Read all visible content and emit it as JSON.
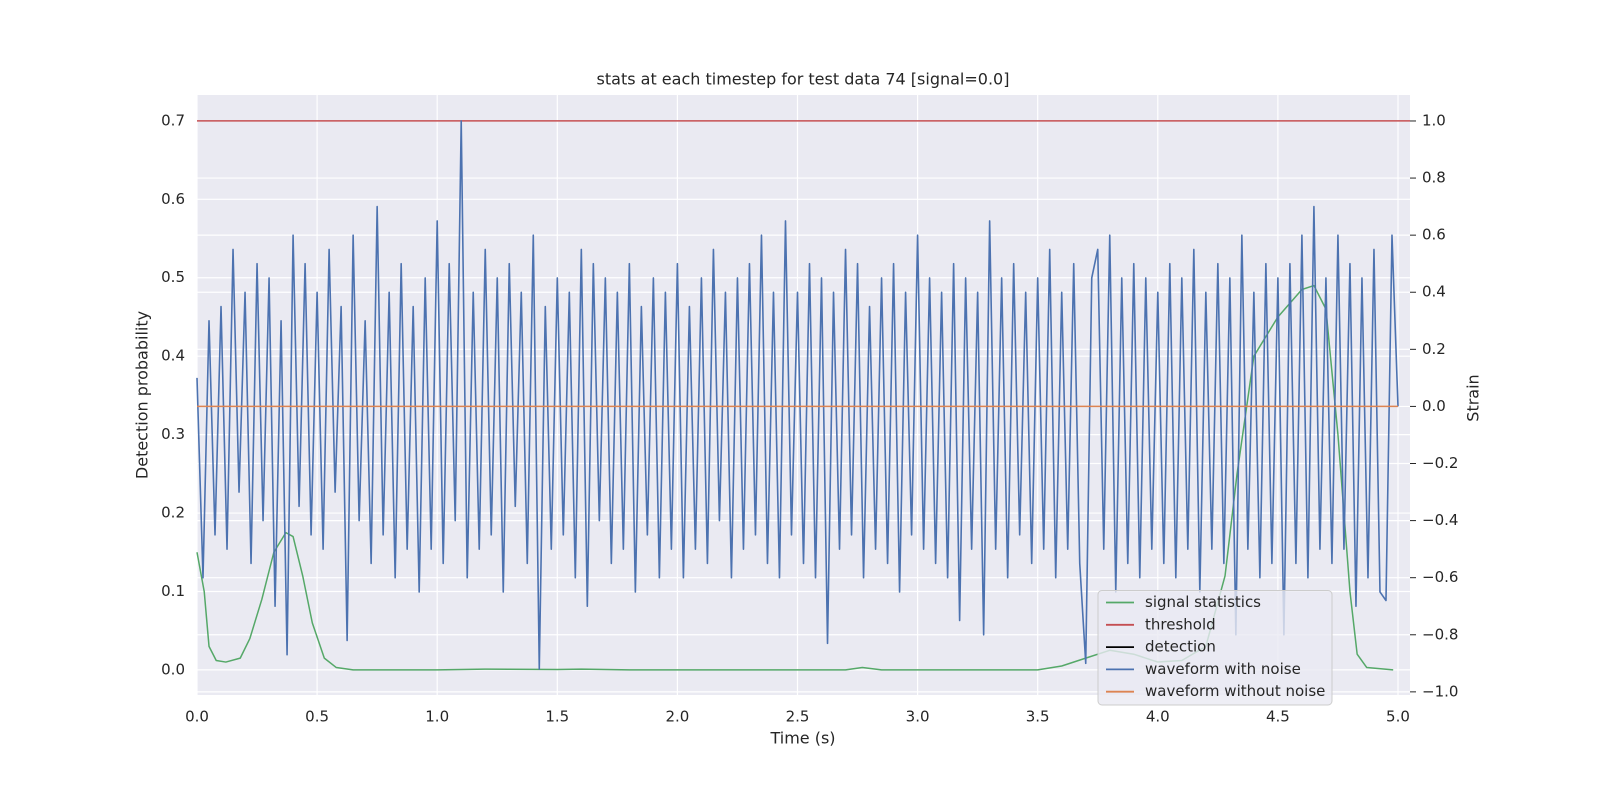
{
  "chart_data": {
    "type": "line",
    "title": "stats at each timestep for test data 74 [signal=0.0]",
    "xlabel": "Time (s)",
    "ylabel": "Detection probability",
    "y2label": "Strain",
    "xlim": [
      0,
      5.05
    ],
    "xticks": [
      {
        "value": 0,
        "label": "0.0"
      },
      0.5,
      {
        "value": 1,
        "label": "1.0"
      },
      1.5,
      {
        "value": 2,
        "label": "2.0"
      },
      2.5,
      {
        "value": 3,
        "label": "3.0"
      },
      3.5,
      {
        "value": 4,
        "label": "4.0"
      },
      4.5,
      {
        "value": 5,
        "label": "5.0"
      }
    ],
    "ylim": [
      -0.032,
      0.733
    ],
    "yticks": [
      {
        "value": 0,
        "label": "0.0"
      },
      0.1,
      0.2,
      0.3,
      0.4,
      0.5,
      0.6,
      0.7
    ],
    "y2lim": [
      -1.011,
      1.091
    ],
    "y2ticks": [
      {
        "value": -1,
        "label": "−1.0"
      },
      {
        "value": -0.8,
        "label": "−0.8"
      },
      {
        "value": -0.6,
        "label": "−0.6"
      },
      {
        "value": -0.4,
        "label": "−0.4"
      },
      {
        "value": -0.2,
        "label": "−0.2"
      },
      {
        "value": 0,
        "label": "0.0"
      },
      0.2,
      0.4,
      0.6,
      0.8,
      {
        "value": 1,
        "label": "1.0"
      }
    ],
    "grid": true,
    "legend": "lower right",
    "series": [
      {
        "name": "signal statistics",
        "color": "#55a868",
        "axis": "y",
        "x": [
          0,
          0.03,
          0.05,
          0.08,
          0.12,
          0.18,
          0.22,
          0.27,
          0.32,
          0.37,
          0.4,
          0.44,
          0.48,
          0.53,
          0.58,
          0.65,
          1.0,
          1.2,
          1.5,
          1.6,
          1.8,
          2.7,
          2.77,
          2.85,
          3.5,
          3.6,
          3.7,
          3.8,
          3.9,
          4.0,
          4.1,
          4.2,
          4.28,
          4.33,
          4.4,
          4.5,
          4.6,
          4.65,
          4.7,
          4.75,
          4.8,
          4.83,
          4.87,
          4.98
        ],
        "values": [
          0.15,
          0.1,
          0.03,
          0.012,
          0.01,
          0.015,
          0.04,
          0.09,
          0.15,
          0.175,
          0.17,
          0.12,
          0.06,
          0.015,
          0.003,
          0,
          0,
          0.001,
          0.0005,
          0.001,
          0,
          0,
          0.003,
          0,
          0,
          0.005,
          0.015,
          0.025,
          0.02,
          0.01,
          0.012,
          0.03,
          0.12,
          0.25,
          0.4,
          0.45,
          0.485,
          0.49,
          0.46,
          0.3,
          0.1,
          0.02,
          0.003,
          0
        ]
      },
      {
        "name": "threshold",
        "color": "#c44e52",
        "axis": "y",
        "x": [
          0,
          5.05
        ],
        "values": [
          0.7,
          0.7
        ]
      },
      {
        "name": "detection",
        "color": "#000000",
        "axis": "y"
      },
      {
        "name": "waveform with noise",
        "color": "#4c72b0",
        "axis": "y2",
        "x": [
          0,
          0.025,
          0.05,
          0.075,
          0.1,
          0.125,
          0.15,
          0.175,
          0.2,
          0.225,
          0.25,
          0.275,
          0.3,
          0.325,
          0.35,
          0.375,
          0.4,
          0.425,
          0.45,
          0.475,
          0.5,
          0.525,
          0.55,
          0.575,
          0.6,
          0.625,
          0.65,
          0.675,
          0.7,
          0.725,
          0.75,
          0.775,
          0.8,
          0.825,
          0.85,
          0.875,
          0.9,
          0.925,
          0.95,
          0.975,
          1,
          1.025,
          1.05,
          1.075,
          1.1,
          1.125,
          1.15,
          1.175,
          1.2,
          1.225,
          1.25,
          1.275,
          1.3,
          1.325,
          1.35,
          1.375,
          1.4,
          1.425,
          1.45,
          1.475,
          1.5,
          1.525,
          1.55,
          1.575,
          1.6,
          1.625,
          1.65,
          1.675,
          1.7,
          1.725,
          1.75,
          1.775,
          1.8,
          1.825,
          1.85,
          1.875,
          1.9,
          1.925,
          1.95,
          1.975,
          2,
          2.025,
          2.05,
          2.075,
          2.1,
          2.125,
          2.15,
          2.175,
          2.2,
          2.225,
          2.25,
          2.275,
          2.3,
          2.325,
          2.35,
          2.375,
          2.4,
          2.425,
          2.45,
          2.475,
          2.5,
          2.525,
          2.55,
          2.575,
          2.6,
          2.625,
          2.65,
          2.675,
          2.7,
          2.725,
          2.75,
          2.775,
          2.8,
          2.825,
          2.85,
          2.875,
          2.9,
          2.925,
          2.95,
          2.975,
          3,
          3.025,
          3.05,
          3.075,
          3.1,
          3.125,
          3.15,
          3.175,
          3.2,
          3.225,
          3.25,
          3.275,
          3.3,
          3.325,
          3.35,
          3.375,
          3.4,
          3.425,
          3.45,
          3.475,
          3.5,
          3.525,
          3.55,
          3.575,
          3.6,
          3.625,
          3.65,
          3.675,
          3.7,
          3.725,
          3.75,
          3.775,
          3.8,
          3.825,
          3.85,
          3.875,
          3.9,
          3.925,
          3.95,
          3.975,
          4,
          4.025,
          4.05,
          4.075,
          4.1,
          4.125,
          4.15,
          4.175,
          4.2,
          4.225,
          4.25,
          4.275,
          4.3,
          4.325,
          4.35,
          4.375,
          4.4,
          4.425,
          4.45,
          4.475,
          4.5,
          4.525,
          4.55,
          4.575,
          4.6,
          4.625,
          4.65,
          4.675,
          4.7,
          4.725,
          4.75,
          4.775,
          4.8,
          4.825,
          4.85,
          4.875,
          4.9,
          4.925,
          4.95,
          4.975,
          5
        ],
        "values": [
          0.1,
          -0.6,
          0.3,
          -0.45,
          0.35,
          -0.5,
          0.55,
          -0.3,
          0.4,
          -0.55,
          0.5,
          -0.4,
          0.45,
          -0.7,
          0.3,
          -0.87,
          0.6,
          -0.35,
          0.5,
          -0.45,
          0.4,
          -0.5,
          0.55,
          -0.3,
          0.35,
          -0.82,
          0.6,
          -0.4,
          0.3,
          -0.55,
          0.7,
          -0.45,
          0.4,
          -0.6,
          0.5,
          -0.5,
          0.35,
          -0.65,
          0.45,
          -0.5,
          0.65,
          -0.55,
          0.5,
          -0.4,
          1.0,
          -0.6,
          0.4,
          -0.5,
          0.55,
          -0.45,
          0.45,
          -0.65,
          0.5,
          -0.35,
          0.4,
          -0.55,
          0.6,
          -0.92,
          0.35,
          -0.5,
          0.45,
          -0.45,
          0.4,
          -0.6,
          0.55,
          -0.7,
          0.5,
          -0.4,
          0.45,
          -0.55,
          0.4,
          -0.5,
          0.5,
          -0.65,
          0.35,
          -0.45,
          0.45,
          -0.6,
          0.4,
          -0.5,
          0.5,
          -0.6,
          0.35,
          -0.5,
          0.45,
          -0.55,
          0.55,
          -0.4,
          0.4,
          -0.6,
          0.45,
          -0.5,
          0.5,
          -0.45,
          0.6,
          -0.55,
          0.4,
          -0.6,
          0.65,
          -0.45,
          0.4,
          -0.55,
          0.5,
          -0.6,
          0.45,
          -0.83,
          0.4,
          -0.5,
          0.55,
          -0.45,
          0.5,
          -0.6,
          0.35,
          -0.5,
          0.45,
          -0.55,
          0.5,
          -0.65,
          0.4,
          -0.45,
          0.6,
          -0.5,
          0.45,
          -0.55,
          0.4,
          -0.6,
          0.5,
          -0.75,
          0.45,
          -0.5,
          0.4,
          -0.8,
          0.65,
          -0.5,
          0.45,
          -0.6,
          0.5,
          -0.45,
          0.4,
          -0.55,
          0.45,
          -0.5,
          0.55,
          -0.6,
          0.4,
          -0.5,
          0.5,
          -0.55,
          -0.9,
          0.45,
          0.55,
          -0.5,
          0.6,
          -0.65,
          0.45,
          -0.55,
          0.5,
          -0.6,
          0.45,
          -0.5,
          0.4,
          -0.55,
          0.5,
          -0.6,
          0.45,
          -0.5,
          0.55,
          -0.65,
          0.4,
          -0.5,
          0.5,
          -0.55,
          0.45,
          -0.8,
          0.6,
          -0.5,
          0.4,
          -0.6,
          0.5,
          -0.55,
          0.45,
          -0.8,
          0.5,
          -0.55,
          0.6,
          -0.6,
          0.7,
          -0.5,
          0.45,
          -0.55,
          0.6,
          -0.5,
          0.5,
          -0.7,
          0.45,
          -0.6,
          0.55,
          -0.65,
          -0.68,
          0.6,
          0
        ]
      },
      {
        "name": "waveform without noise",
        "color": "#dd8452",
        "axis": "y2",
        "x": [
          0,
          5
        ],
        "values": [
          0,
          0
        ]
      }
    ]
  }
}
